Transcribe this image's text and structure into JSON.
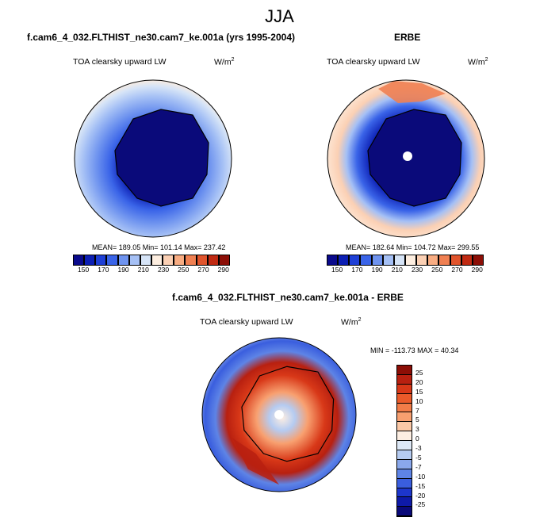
{
  "figure": {
    "title": "JJA"
  },
  "panels": [
    {
      "id": "model",
      "title": "f.cam6_4_032.FLTHIST_ne30.cam7_ke.001a (yrs 1995-2004)",
      "variable": "TOA clearsky upward LW",
      "units": "W/m",
      "units_sup": "2",
      "stats": "MEAN= 189.05  Min= 101.14  Max= 237.42"
    },
    {
      "id": "obs",
      "title": "ERBE",
      "variable": "TOA clearsky upward LW",
      "units": "W/m",
      "units_sup": "2",
      "stats": "MEAN= 182.64  Min= 104.72  Max= 299.55"
    },
    {
      "id": "diff",
      "title": "f.cam6_4_032.FLTHIST_ne30.cam7_ke.001a - ERBE",
      "variable": "TOA clearsky upward LW",
      "units": "W/m",
      "units_sup": "2",
      "stats": "MIN = -113.73 MAX =  40.34"
    }
  ],
  "colorbars": {
    "absolute": {
      "ticks": [
        "150",
        "170",
        "190",
        "210",
        "230",
        "250",
        "270",
        "290"
      ],
      "colors": [
        "#0a0a8c",
        "#0c1fb4",
        "#1e3fd6",
        "#3a64e8",
        "#6e93ef",
        "#a5c0f5",
        "#d6e4f7",
        "#fdeee0",
        "#fbd0b4",
        "#f8ac82",
        "#f08052",
        "#e0542c",
        "#c02a12",
        "#8c0e06"
      ]
    },
    "difference": {
      "labels": [
        "25",
        "20",
        "15",
        "10",
        "7",
        "5",
        "3",
        "0",
        "-3",
        "-5",
        "-7",
        "-10",
        "-15",
        "-20",
        "-25"
      ],
      "colors": [
        "#8c0e06",
        "#b82010",
        "#d83818",
        "#ea5a2a",
        "#f27c48",
        "#f8a070",
        "#fbc8a6",
        "#fdeee2",
        "#dde8f6",
        "#b5cbf1",
        "#8aa8ec",
        "#5e84e6",
        "#3a5ede",
        "#1d36cc",
        "#0e1aa8",
        "#0a0a7a"
      ]
    }
  }
}
